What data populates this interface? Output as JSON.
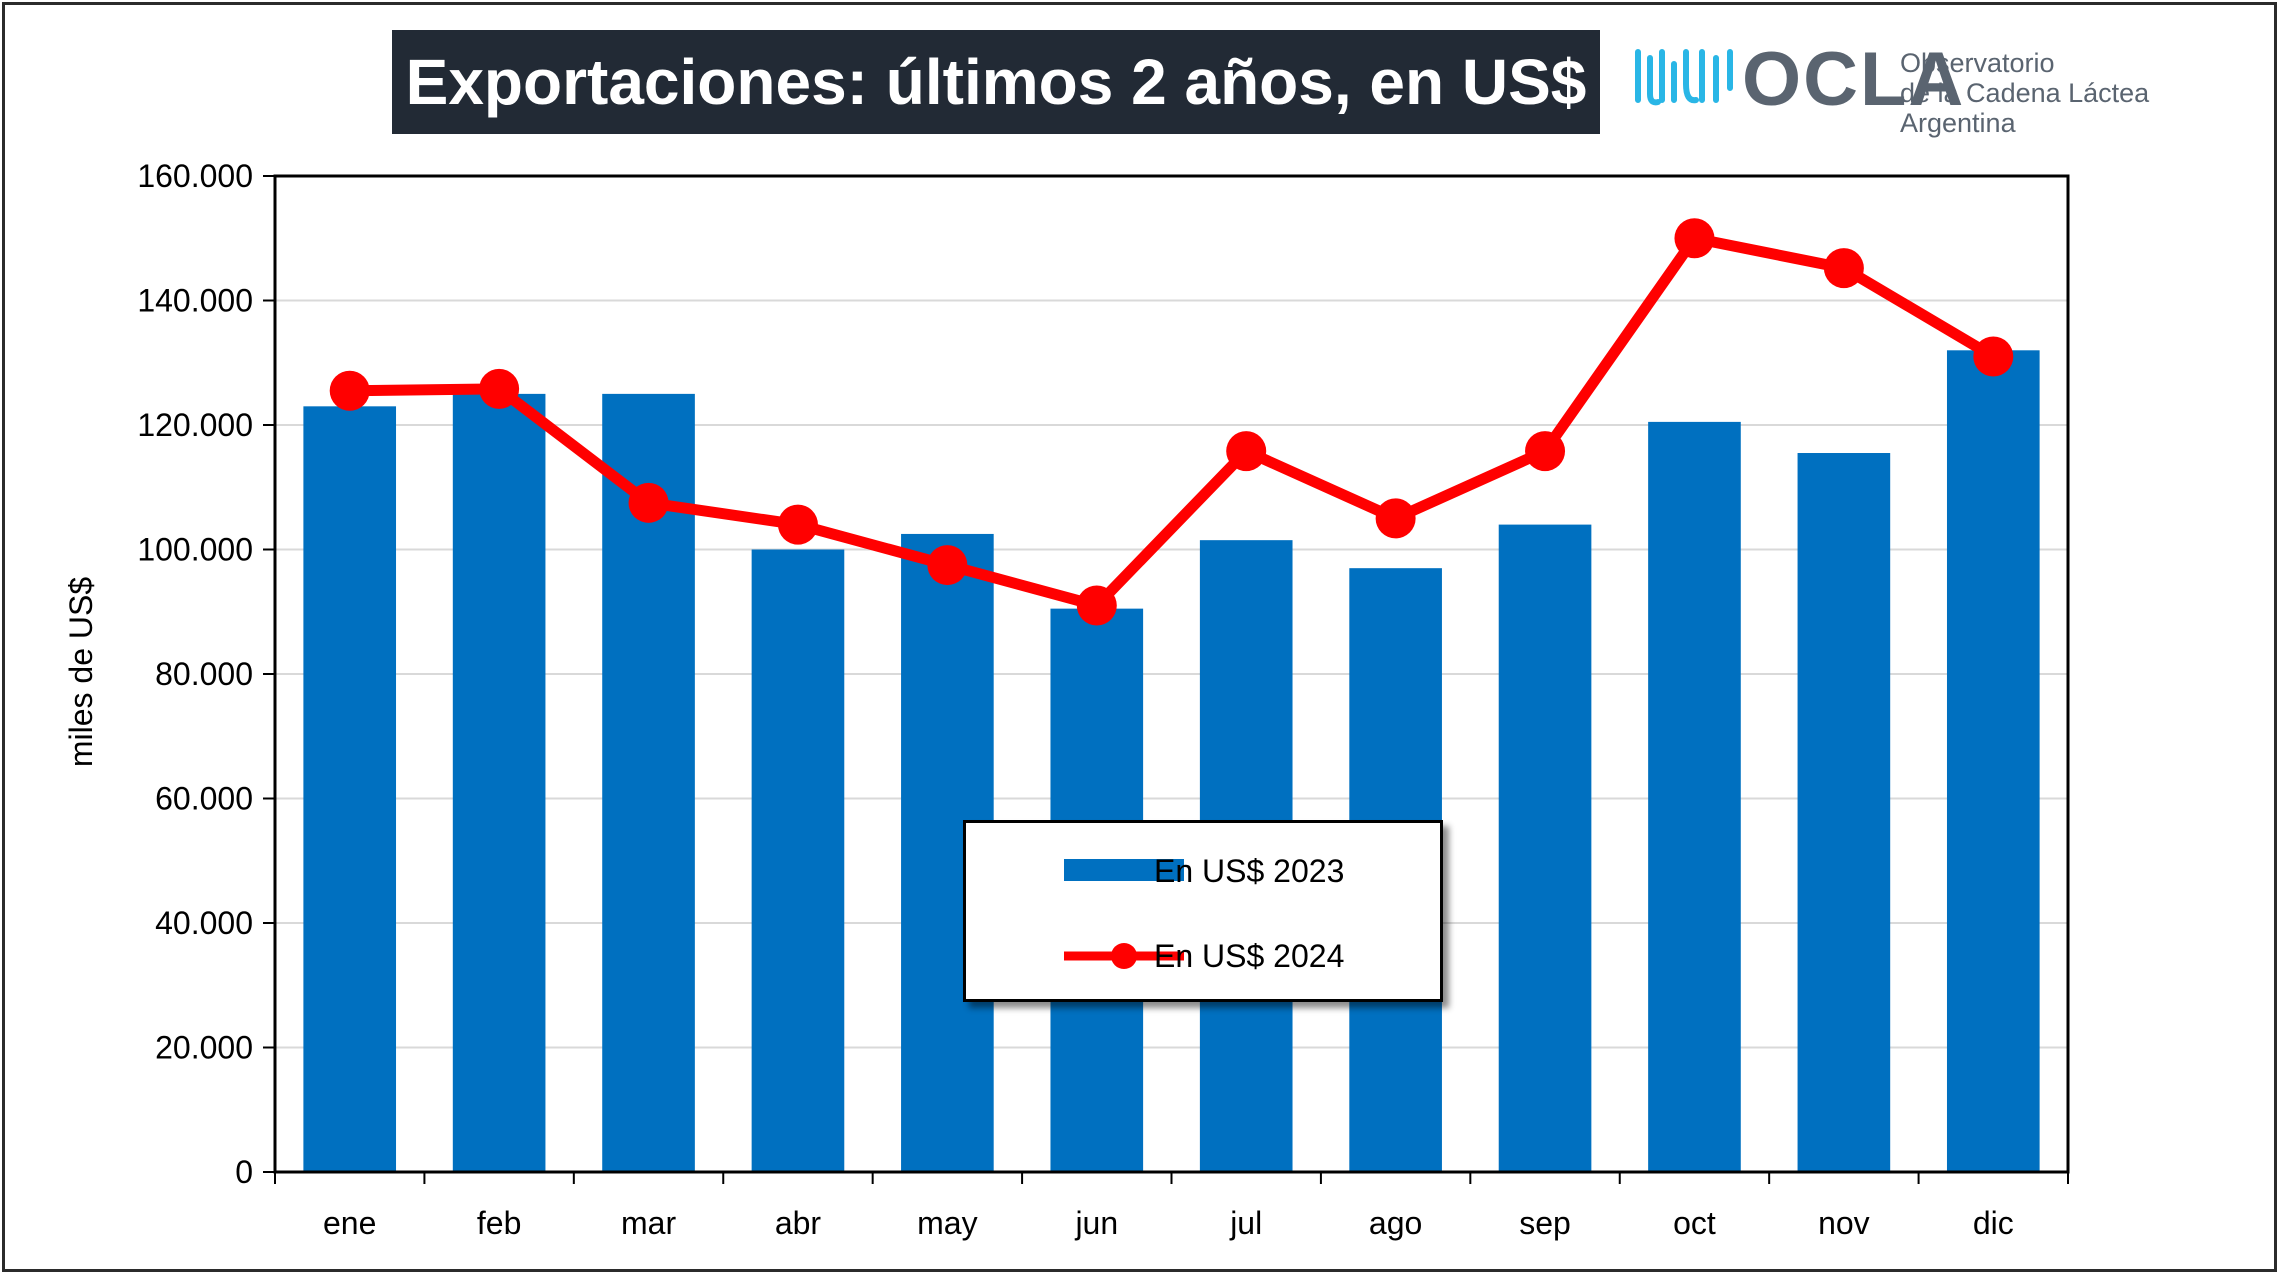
{
  "title": "Exportaciones: últimos 2 años, en US$",
  "logo": {
    "name": "OCLA",
    "line1": "Observatorio",
    "line2": "de la Cadena Láctea",
    "line3": "Argentina"
  },
  "chart_data": {
    "type": "bar",
    "title": "Exportaciones: últimos 2 años, en US$",
    "ylabel": "miles de US$",
    "xlabel": "",
    "categories": [
      "ene",
      "feb",
      "mar",
      "abr",
      "may",
      "jun",
      "jul",
      "ago",
      "sep",
      "oct",
      "nov",
      "dic"
    ],
    "ylim": [
      0,
      160000
    ],
    "yticks": [
      0,
      20000,
      40000,
      60000,
      80000,
      100000,
      120000,
      140000,
      160000
    ],
    "ytick_labels": [
      "0",
      "20.000",
      "40.000",
      "60.000",
      "80.000",
      "100.000",
      "120.000",
      "140.000",
      "160.000"
    ],
    "grid": true,
    "legend_position": "bottom-center",
    "series": [
      {
        "name": "En US$ 2023",
        "kind": "bar",
        "color": "#0070c0",
        "values": [
          123000,
          125000,
          125000,
          100000,
          102500,
          90500,
          101500,
          97000,
          104000,
          120500,
          115500,
          132000
        ]
      },
      {
        "name": "En US$ 2024",
        "kind": "line",
        "color": "#ff0000",
        "values": [
          125500,
          125800,
          107500,
          104000,
          97500,
          91000,
          115800,
          105000,
          115800,
          150000,
          145200,
          131000
        ]
      }
    ]
  }
}
